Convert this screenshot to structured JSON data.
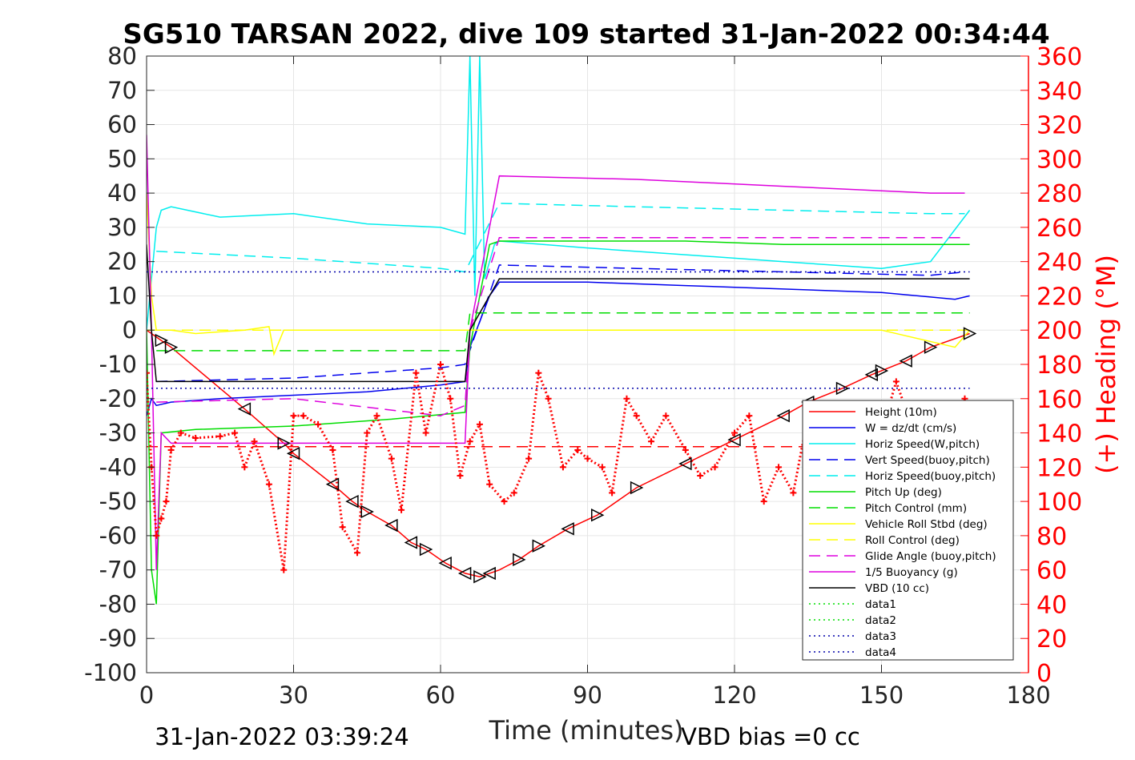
{
  "chart_data": {
    "type": "line",
    "title": "SG510 TARSAN 2022, dive 109 started 31-Jan-2022 00:34:44",
    "xlabel": "Time (minutes)",
    "ylabel": "",
    "ylabel_right": "(+) Heading (°M)",
    "footer_left": "31-Jan-2022 03:39:24",
    "footer_right": "VBD bias =0 cc",
    "xlim": [
      0,
      180
    ],
    "ylim": [
      -100,
      80
    ],
    "ylim_right": [
      0,
      360
    ],
    "xticks": [
      "0",
      "30",
      "60",
      "90",
      "120",
      "150",
      "180"
    ],
    "yticks": [
      "80",
      "70",
      "60",
      "50",
      "40",
      "30",
      "20",
      "10",
      "0",
      "-10",
      "-20",
      "-30",
      "-40",
      "-50",
      "-60",
      "-70",
      "-80",
      "-90",
      "-100"
    ],
    "yticks_right": [
      "360",
      "340",
      "320",
      "300",
      "280",
      "260",
      "240",
      "220",
      "200",
      "180",
      "160",
      "140",
      "120",
      "100",
      "80",
      "60",
      "40",
      "20",
      "0"
    ],
    "grid": true,
    "legend_position": "lower-right",
    "colors": {
      "red": "#ff0000",
      "blue": "#0000ee",
      "cyan": "#00eeee",
      "green": "#00dd00",
      "yellow": "#ffff00",
      "magenta": "#dd00dd",
      "black": "#000000",
      "right_axis": "#ff0000",
      "grid": "#e6e6e6"
    },
    "series": [
      {
        "name": "Height (10m)",
        "color": "#ff0000",
        "style": "solid",
        "marker": "triangle",
        "x": [
          0,
          1,
          3,
          5,
          20,
          28,
          30,
          38,
          42,
          45,
          50,
          54,
          57,
          61,
          65,
          68,
          70,
          72,
          76,
          80,
          86,
          92,
          100,
          110,
          120,
          130,
          135,
          142,
          148,
          155,
          160,
          168
        ],
        "y": [
          0,
          -1,
          -3,
          -5,
          -23,
          -33,
          -36,
          -45,
          -50,
          -53,
          -57,
          -62,
          -64,
          -68,
          -71,
          -72,
          -71,
          -70,
          -67,
          -63,
          -58,
          -54,
          -46,
          -39,
          -32,
          -25,
          -21,
          -17,
          -13,
          -9,
          -5,
          -1
        ]
      },
      {
        "name": "W = dz/dt (cm/s)",
        "color": "#0000ee",
        "style": "solid",
        "x": [
          0,
          1,
          2,
          5,
          15,
          30,
          45,
          60,
          65,
          66,
          70,
          72,
          90,
          110,
          130,
          150,
          165,
          168
        ],
        "y": [
          -25,
          -20,
          -22,
          -21,
          -20,
          -19,
          -18,
          -16,
          -15,
          -5,
          10,
          14,
          14,
          13,
          12,
          11,
          9,
          10
        ]
      },
      {
        "name": "Horiz Speed(W,pitch)",
        "color": "#00eeee",
        "style": "solid",
        "x": [
          0,
          2,
          3,
          5,
          15,
          30,
          45,
          60,
          65,
          66,
          67,
          68,
          69,
          70,
          71,
          72,
          90,
          110,
          130,
          150,
          160,
          168
        ],
        "y": [
          0,
          30,
          35,
          36,
          33,
          34,
          31,
          30,
          28,
          80,
          10,
          80,
          15,
          20,
          25,
          26,
          24,
          22,
          20,
          18,
          20,
          35
        ]
      },
      {
        "name": "Vert Speed(buoy,pitch)",
        "color": "#0000ee",
        "style": "dashed",
        "x": [
          2,
          30,
          60,
          65,
          72,
          100,
          130,
          160,
          167
        ],
        "y": [
          -15,
          -14,
          -11,
          -10,
          19,
          18,
          17,
          16,
          17
        ]
      },
      {
        "name": "Horiz Speed(buoy,pitch)",
        "color": "#00eeee",
        "style": "dashed",
        "x": [
          2,
          30,
          60,
          65,
          72,
          100,
          130,
          160,
          167
        ],
        "y": [
          23,
          21,
          18,
          17,
          37,
          36,
          35,
          34,
          34
        ]
      },
      {
        "name": "Pitch Up (deg)",
        "color": "#00dd00",
        "style": "solid",
        "x": [
          0,
          1,
          2,
          3,
          10,
          30,
          50,
          65,
          66,
          70,
          72,
          90,
          110,
          130,
          150,
          165,
          168
        ],
        "y": [
          0,
          -70,
          -80,
          -30,
          -29,
          -28,
          -26,
          -24,
          -5,
          25,
          26,
          26,
          26,
          25,
          25,
          25,
          25
        ]
      },
      {
        "name": "Pitch Control (mm)",
        "color": "#00dd00",
        "style": "dashed",
        "x": [
          2,
          65,
          66,
          168
        ],
        "y": [
          -6,
          -6,
          5,
          5
        ]
      },
      {
        "name": "Vehicle Roll Stbd (deg)",
        "color": "#ffff00",
        "style": "solid",
        "x": [
          0,
          1,
          2,
          5,
          10,
          20,
          25,
          26,
          28,
          30,
          40,
          50,
          60,
          70,
          72,
          90,
          110,
          130,
          150,
          165,
          168
        ],
        "y": [
          40,
          10,
          0,
          0,
          -1,
          0,
          1,
          -7,
          0,
          0,
          0,
          0,
          0,
          0,
          0,
          0,
          0,
          0,
          0,
          -5,
          0
        ]
      },
      {
        "name": "Roll Control (deg)",
        "color": "#ffff00",
        "style": "dashed",
        "x": [
          0,
          168
        ],
        "y": [
          0,
          0
        ]
      },
      {
        "name": "Glide Angle (buoy,pitch)",
        "color": "#dd00dd",
        "style": "dashed",
        "x": [
          2,
          30,
          60,
          65,
          66,
          72,
          100,
          130,
          160,
          167
        ],
        "y": [
          -21,
          -20,
          -25,
          -22,
          0,
          27,
          27,
          27,
          27,
          27
        ]
      },
      {
        "name": "1/5 Buoyancy (g)",
        "color": "#dd00dd",
        "style": "solid",
        "x": [
          0,
          1,
          2,
          3,
          5,
          65,
          66,
          72,
          100,
          130,
          160,
          165,
          167
        ],
        "y": [
          57,
          0,
          -70,
          -30,
          -33,
          -33,
          0,
          45,
          44,
          42,
          40,
          40,
          40
        ]
      },
      {
        "name": "VBD (10 cc)",
        "color": "#000000",
        "style": "solid",
        "x": [
          0,
          1,
          2,
          65,
          66,
          72,
          168
        ],
        "y": [
          25,
          0,
          -15,
          -15,
          0,
          15,
          15
        ]
      },
      {
        "name": "data1",
        "color": "#00dd00",
        "style": "dotted",
        "x": [],
        "y": []
      },
      {
        "name": "data2",
        "color": "#00dd00",
        "style": "dotted",
        "x": [],
        "y": []
      },
      {
        "name": "data3",
        "color": "#0000aa",
        "style": "dotted",
        "x": [
          0,
          168
        ],
        "y": [
          17,
          17
        ]
      },
      {
        "name": "data4",
        "color": "#0000aa",
        "style": "dotted",
        "x": [
          0,
          168
        ],
        "y": [
          -17,
          -17
        ]
      }
    ],
    "extra_lines": [
      {
        "color": "#ff0000",
        "style": "dashed",
        "x": [
          0,
          168
        ],
        "y": [
          -34,
          -34
        ]
      }
    ],
    "heading": {
      "axis": "right",
      "color": "#ff0000",
      "marker": "+",
      "x": [
        0,
        1,
        2,
        3,
        4,
        5,
        7,
        10,
        15,
        18,
        20,
        22,
        25,
        28,
        30,
        32,
        35,
        38,
        40,
        43,
        45,
        47,
        50,
        52,
        55,
        57,
        60,
        62,
        64,
        66,
        68,
        70,
        73,
        75,
        78,
        80,
        82,
        85,
        88,
        90,
        93,
        95,
        98,
        100,
        103,
        106,
        110,
        113,
        116,
        120,
        123,
        126,
        129,
        132,
        135,
        138,
        141,
        144,
        147,
        150,
        153,
        156,
        159,
        162,
        165,
        167
      ],
      "y": [
        175,
        120,
        80,
        90,
        100,
        130,
        140,
        137,
        138,
        140,
        120,
        135,
        110,
        60,
        150,
        150,
        145,
        130,
        85,
        70,
        140,
        150,
        125,
        95,
        175,
        140,
        180,
        160,
        115,
        135,
        145,
        110,
        100,
        105,
        125,
        175,
        160,
        120,
        130,
        125,
        120,
        105,
        160,
        150,
        135,
        150,
        130,
        115,
        120,
        140,
        150,
        100,
        120,
        105,
        150,
        115,
        110,
        130,
        155,
        140,
        170,
        145,
        130,
        120,
        110,
        160
      ]
    },
    "markers": {
      "triangle_right_x": [
        3,
        5,
        28,
        45,
        57,
        68,
        76,
        80,
        92,
        100,
        142,
        150,
        160,
        168
      ],
      "triangle_left_x": [
        20,
        30,
        38,
        42,
        50,
        54,
        61,
        65,
        70,
        86,
        110,
        120,
        130,
        135,
        148,
        155
      ]
    }
  }
}
